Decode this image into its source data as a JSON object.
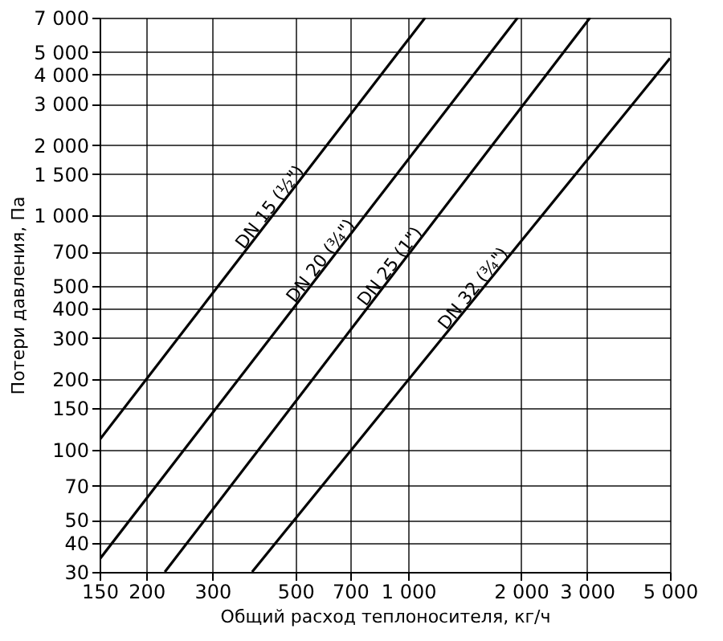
{
  "chart_data": {
    "type": "line",
    "xlabel": "Общий расход теплоносителя, кг/ч",
    "ylabel": "Потери давления, Па",
    "log": "xy",
    "grid": true,
    "marker": "none",
    "line_style": "solid",
    "xlim": [
      150,
      5000
    ],
    "ylim": [
      30,
      7000
    ],
    "xticks": [
      150,
      200,
      300,
      500,
      700,
      {
        "value": 1000,
        "label": "1 000"
      },
      {
        "value": 2000,
        "label": "2 000"
      },
      {
        "value": 3000,
        "label": "3 000"
      },
      {
        "value": 5000,
        "label": "5 000"
      }
    ],
    "yticks": [
      30,
      40,
      50,
      70,
      100,
      150,
      200,
      300,
      400,
      500,
      700,
      {
        "value": 1000,
        "label": "1 000"
      },
      {
        "value": 1500,
        "label": "1 500"
      },
      {
        "value": 2000,
        "label": "2 000"
      },
      {
        "value": 3000,
        "label": "3 000"
      },
      {
        "value": 4000,
        "label": "4 000"
      },
      {
        "value": 5000,
        "label": "5 000"
      },
      {
        "value": 7000,
        "label": "7 000"
      }
    ],
    "series": [
      {
        "name": "DN 15 (½\")",
        "color": "#000000",
        "x": [
          150,
          1110
        ],
        "values": [
          110,
          7000
        ]
      },
      {
        "name": "DN 20 (¾\")",
        "color": "#000000",
        "x": [
          150,
          1960
        ],
        "values": [
          34,
          7000
        ]
      },
      {
        "name": "DN 25 (1\")",
        "color": "#000000",
        "x": [
          224,
          3060
        ],
        "values": [
          30,
          7000
        ]
      },
      {
        "name": "DN 32 (¾\")",
        "color": "#000000",
        "x": [
          383,
          5000
        ],
        "values": [
          30,
          4700
        ]
      }
    ]
  }
}
